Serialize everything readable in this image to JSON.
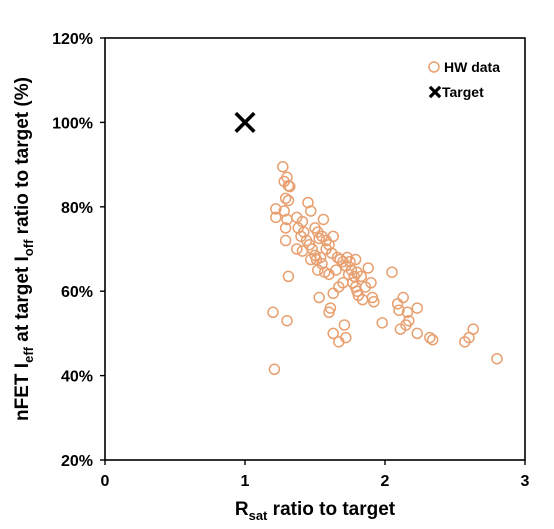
{
  "chart_data": {
    "type": "scatter",
    "xlabel": {
      "main": "R",
      "sub": "sat",
      "rest": " ratio to target"
    },
    "ylabel": {
      "p1": "nFET I",
      "s1": "eff",
      "p2": " at target I",
      "s2": "off",
      "p3": " ratio to target (%)"
    },
    "xlim": [
      0,
      3
    ],
    "ylim": [
      20,
      120
    ],
    "x_ticks": [
      0,
      1,
      2,
      3
    ],
    "x_tick_labels": [
      "0",
      "1",
      "2",
      "3"
    ],
    "y_ticks": [
      20,
      40,
      60,
      80,
      100,
      120
    ],
    "y_tick_labels": [
      "20%",
      "40%",
      "60%",
      "80%",
      "100%",
      "120%"
    ],
    "grid": false,
    "legend_position": "top-right",
    "series": [
      {
        "name": "HW data",
        "marker": "open-circle",
        "color": "#E8A070",
        "points": [
          [
            1.27,
            89.5
          ],
          [
            1.3,
            87.0
          ],
          [
            1.28,
            86.0
          ],
          [
            1.31,
            85.0
          ],
          [
            1.32,
            84.8
          ],
          [
            1.29,
            82.0
          ],
          [
            1.31,
            81.5
          ],
          [
            1.22,
            79.5
          ],
          [
            1.28,
            79.0
          ],
          [
            1.22,
            77.5
          ],
          [
            1.3,
            77.0
          ],
          [
            1.29,
            75.0
          ],
          [
            1.29,
            72.0
          ],
          [
            1.31,
            63.5
          ],
          [
            1.3,
            53.0
          ],
          [
            1.21,
            41.5
          ],
          [
            1.2,
            55.0
          ],
          [
            1.45,
            81.0
          ],
          [
            1.47,
            79.0
          ],
          [
            1.37,
            77.5
          ],
          [
            1.41,
            76.5
          ],
          [
            1.38,
            75.0
          ],
          [
            1.42,
            74.0
          ],
          [
            1.4,
            73.0
          ],
          [
            1.44,
            72.0
          ],
          [
            1.46,
            71.0
          ],
          [
            1.37,
            70.0
          ],
          [
            1.41,
            69.5
          ],
          [
            1.48,
            70.0
          ],
          [
            1.5,
            75.0
          ],
          [
            1.52,
            74.0
          ],
          [
            1.53,
            72.5
          ],
          [
            1.55,
            73.0
          ],
          [
            1.58,
            72.0
          ],
          [
            1.6,
            71.0
          ],
          [
            1.5,
            68.5
          ],
          [
            1.51,
            67.5
          ],
          [
            1.54,
            68.0
          ],
          [
            1.55,
            66.5
          ],
          [
            1.58,
            70.0
          ],
          [
            1.62,
            69.0
          ],
          [
            1.63,
            73.0
          ],
          [
            1.56,
            77.0
          ],
          [
            1.47,
            67.5
          ],
          [
            1.52,
            65.0
          ],
          [
            1.57,
            64.5
          ],
          [
            1.6,
            64.0
          ],
          [
            1.65,
            65.0
          ],
          [
            1.66,
            68.0
          ],
          [
            1.68,
            67.5
          ],
          [
            1.7,
            67.0
          ],
          [
            1.72,
            66.0
          ],
          [
            1.73,
            68.0
          ],
          [
            1.75,
            67.0
          ],
          [
            1.76,
            65.0
          ],
          [
            1.74,
            64.0
          ],
          [
            1.78,
            63.5
          ],
          [
            1.77,
            62.0
          ],
          [
            1.79,
            61.0
          ],
          [
            1.8,
            60.0
          ],
          [
            1.81,
            59.0
          ],
          [
            1.84,
            58.0
          ],
          [
            1.86,
            61.0
          ],
          [
            1.83,
            63.5
          ],
          [
            1.88,
            65.5
          ],
          [
            1.9,
            62.0
          ],
          [
            1.91,
            58.5
          ],
          [
            1.92,
            57.5
          ],
          [
            1.79,
            67.5
          ],
          [
            1.8,
            64.5
          ],
          [
            1.7,
            62.0
          ],
          [
            1.67,
            61.0
          ],
          [
            1.63,
            59.5
          ],
          [
            1.53,
            58.5
          ],
          [
            1.61,
            56.0
          ],
          [
            1.6,
            55.0
          ],
          [
            1.63,
            50.0
          ],
          [
            1.71,
            52.0
          ],
          [
            1.72,
            49.0
          ],
          [
            1.67,
            48.0
          ],
          [
            2.05,
            64.5
          ],
          [
            2.09,
            57.0
          ],
          [
            2.13,
            58.5
          ],
          [
            2.1,
            55.5
          ],
          [
            2.16,
            55.0
          ],
          [
            2.17,
            53.0
          ],
          [
            2.15,
            52.0
          ],
          [
            2.11,
            51.0
          ],
          [
            1.98,
            52.5
          ],
          [
            2.23,
            56.0
          ],
          [
            2.23,
            50.0
          ],
          [
            2.32,
            49.0
          ],
          [
            2.34,
            48.5
          ],
          [
            2.57,
            48.0
          ],
          [
            2.6,
            49.0
          ],
          [
            2.63,
            51.0
          ],
          [
            2.8,
            44.0
          ]
        ]
      },
      {
        "name": "Target",
        "marker": "x",
        "color": "#000000",
        "points": [
          [
            1.0,
            100.0
          ]
        ]
      }
    ]
  }
}
